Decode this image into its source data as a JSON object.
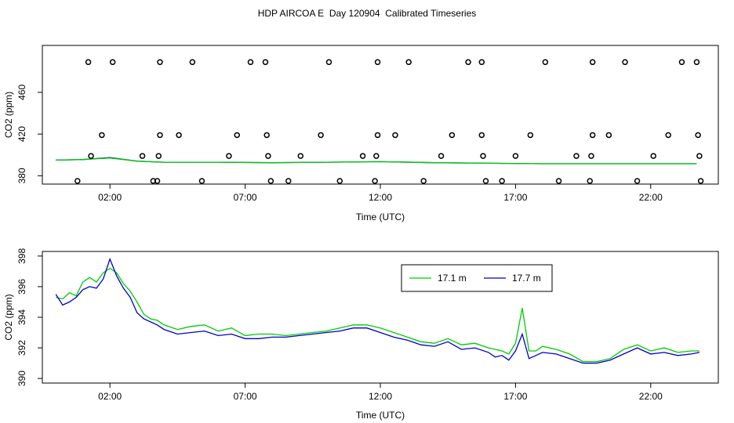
{
  "title": "HDP AIRCOA E  Day 120904  Calibrated Timeseries",
  "chart_data": [
    {
      "type": "line",
      "subtype": "timeseries-with-calibration-points",
      "xlabel": "Time (UTC)",
      "ylabel": "CO2 (ppm)",
      "x_ticks": [
        "02:00",
        "07:00",
        "12:00",
        "17:00",
        "22:00"
      ],
      "x_tick_values": [
        2,
        7,
        12,
        17,
        22
      ],
      "xlim": [
        -0.5,
        24.5
      ],
      "y_ticks": [
        380,
        420,
        460
      ],
      "ylim": [
        372,
        505
      ],
      "series": [
        {
          "color": "#0000cc",
          "style": "line",
          "x": [
            0,
            1,
            2,
            3,
            4,
            6,
            8,
            10,
            12,
            14,
            16,
            18,
            20,
            22,
            23.7
          ],
          "y": [
            395,
            395.5,
            397.5,
            394,
            393,
            393,
            392.5,
            393,
            393.5,
            392.5,
            392,
            391.5,
            391.5,
            391.5,
            391.5
          ]
        },
        {
          "color": "#00cc00",
          "style": "line",
          "x": [
            0,
            1,
            2,
            3,
            4,
            6,
            8,
            10,
            12,
            14,
            16,
            18,
            20,
            22,
            23.7
          ],
          "y": [
            395,
            395.5,
            397,
            394,
            393,
            393,
            392.5,
            393,
            393.5,
            392.5,
            392,
            391.5,
            391.5,
            391.5,
            391.5
          ]
        },
        {
          "style": "points",
          "x": [
            1.2,
            2.1,
            3.85,
            5.05,
            7.2,
            7.75,
            10.1,
            11.9,
            13.05,
            15.25,
            15.75,
            18.1,
            19.85,
            21.05,
            23.15,
            23.7,
            1.7,
            3.85,
            4.55,
            6.7,
            7.8,
            9.8,
            11.9,
            12.55,
            14.65,
            15.75,
            17.55,
            19.85,
            20.45,
            22.65,
            23.75,
            0.8,
            1.3,
            3.2,
            3.8,
            6.4,
            7.85,
            9.05,
            11.35,
            11.85,
            14.25,
            15.8,
            17.0,
            19.25,
            19.8,
            22.1,
            23.8
          ],
          "y": [
            489,
            489,
            489,
            489,
            489,
            489,
            489,
            489,
            489,
            489,
            489,
            489,
            489,
            489,
            489,
            489,
            419,
            419,
            419,
            419,
            419,
            419,
            419,
            419,
            419,
            419,
            419,
            419,
            419,
            419,
            419,
            375,
            399,
            399,
            399,
            399,
            399,
            399,
            399,
            399,
            399,
            399,
            399,
            399,
            399,
            399,
            399
          ]
        }
      ],
      "extra_points_low": {
        "x": [
          3.6,
          3.75,
          5.4,
          7.95,
          8.6,
          10.5,
          11.8,
          13.6,
          15.9,
          16.5,
          18.6,
          19.75,
          21.5,
          23.85
        ],
        "y": [
          375,
          375,
          375,
          375,
          375,
          375,
          375,
          375,
          375,
          375,
          375,
          375,
          375,
          375
        ]
      }
    },
    {
      "type": "line",
      "xlabel": "Time (UTC)",
      "ylabel": "CO2 (ppm)",
      "x_ticks": [
        "02:00",
        "07:00",
        "12:00",
        "17:00",
        "22:00"
      ],
      "x_tick_values": [
        2,
        7,
        12,
        17,
        22
      ],
      "xlim": [
        -0.5,
        24.5
      ],
      "y_ticks": [
        390,
        392,
        394,
        396,
        398
      ],
      "ylim": [
        389.7,
        398.3
      ],
      "legend_position": "top-right",
      "series": [
        {
          "name": "17.1 m",
          "color": "#00cc00",
          "x": [
            0,
            0.25,
            0.5,
            0.75,
            1,
            1.25,
            1.5,
            1.75,
            2,
            2.25,
            2.5,
            2.75,
            3,
            3.25,
            3.5,
            3.75,
            4,
            4.5,
            5,
            5.5,
            6,
            6.5,
            7,
            7.5,
            8,
            8.5,
            9,
            9.5,
            10,
            10.5,
            11,
            11.5,
            12,
            12.5,
            13,
            13.5,
            14,
            14.5,
            15,
            15.5,
            16,
            16.25,
            16.5,
            16.75,
            17,
            17.25,
            17.5,
            17.75,
            18,
            18.5,
            19,
            19.5,
            20,
            20.5,
            21,
            21.5,
            22,
            22.5,
            23,
            23.5,
            23.8
          ],
          "y": [
            395.3,
            395.2,
            395.6,
            395.4,
            396.3,
            396.6,
            396.3,
            396.9,
            397.2,
            396.9,
            396.2,
            395.7,
            395.0,
            394.2,
            393.9,
            393.8,
            393.5,
            393.2,
            393.4,
            393.5,
            393.1,
            393.3,
            392.8,
            392.9,
            392.9,
            392.8,
            392.9,
            393.0,
            393.1,
            393.3,
            393.5,
            393.5,
            393.3,
            393.0,
            392.7,
            392.4,
            392.3,
            392.6,
            392.2,
            392.3,
            392.0,
            391.9,
            391.8,
            391.6,
            392.3,
            394.6,
            391.8,
            391.8,
            392.1,
            391.9,
            391.6,
            391.1,
            391.1,
            391.3,
            391.9,
            392.2,
            391.8,
            392.0,
            391.7,
            391.8,
            391.8
          ]
        },
        {
          "name": "17.7 m",
          "color": "#0000cc",
          "x": [
            0,
            0.25,
            0.5,
            0.75,
            1,
            1.25,
            1.5,
            1.75,
            2,
            2.25,
            2.5,
            2.75,
            3,
            3.25,
            3.5,
            3.75,
            4,
            4.5,
            5,
            5.5,
            6,
            6.5,
            7,
            7.5,
            8,
            8.5,
            9,
            9.5,
            10,
            10.5,
            11,
            11.5,
            12,
            12.5,
            13,
            13.5,
            14,
            14.5,
            15,
            15.5,
            16,
            16.25,
            16.5,
            16.75,
            17,
            17.25,
            17.5,
            17.75,
            18,
            18.5,
            19,
            19.5,
            20,
            20.5,
            21,
            21.5,
            22,
            22.5,
            23,
            23.5,
            23.8
          ],
          "y": [
            395.5,
            394.8,
            395.0,
            395.3,
            395.8,
            396.0,
            395.9,
            396.5,
            397.8,
            396.7,
            395.9,
            395.3,
            394.3,
            393.9,
            393.7,
            393.5,
            393.2,
            392.9,
            393.0,
            393.1,
            392.8,
            392.9,
            392.6,
            392.6,
            392.7,
            392.7,
            392.8,
            392.9,
            393.0,
            393.1,
            393.3,
            393.3,
            393.0,
            392.7,
            392.5,
            392.2,
            392.1,
            392.4,
            391.9,
            392.0,
            391.7,
            391.4,
            391.5,
            391.2,
            391.8,
            392.9,
            391.3,
            391.5,
            391.7,
            391.6,
            391.3,
            391.0,
            391.0,
            391.2,
            391.6,
            392.0,
            391.6,
            391.7,
            391.5,
            391.6,
            391.7
          ]
        }
      ]
    }
  ]
}
